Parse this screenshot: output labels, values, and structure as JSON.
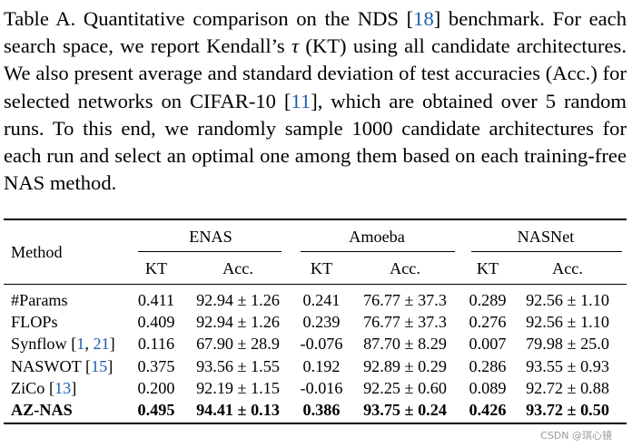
{
  "caption": {
    "parts": [
      {
        "t": "Table A. Quantitative comparison on the NDS ["
      },
      {
        "t": "18",
        "ref": true
      },
      {
        "t": "] benchmark. For each search space, we report Kendall’s "
      },
      {
        "t": "τ",
        "tau": true
      },
      {
        "t": " (KT) using all candidate architectures. We also present average and standard deviation of test accuracies (Acc.) for selected networks on CIFAR-10 ["
      },
      {
        "t": "11",
        "ref": true
      },
      {
        "t": "], which are obtained over 5 random runs. To this end, we randomly sample 1000 candidate architectures for each run and select an optimal one among them based on each training-free NAS method."
      }
    ]
  },
  "table": {
    "method_header": "Method",
    "groups": [
      "ENAS",
      "Amoeba",
      "NASNet"
    ],
    "subheaders": [
      "KT",
      "Acc."
    ],
    "rows": [
      {
        "method": "#Params",
        "values": [
          "0.411",
          "92.94 ± 1.26",
          "0.241",
          "76.77 ± 37.3",
          "0.289",
          "92.56 ± 1.10"
        ]
      },
      {
        "method": "FLOPs",
        "values": [
          "0.409",
          "92.94 ± 1.26",
          "0.239",
          "76.77 ± 37.3",
          "0.276",
          "92.56 ± 1.10"
        ]
      },
      {
        "method": "Synflow",
        "refs": [
          "1",
          "21"
        ],
        "values": [
          "0.116",
          "67.90 ± 28.9",
          "-0.076",
          "87.70 ± 8.29",
          "0.007",
          "79.98 ± 25.0"
        ]
      },
      {
        "method": "NASWOT",
        "refs": [
          "15"
        ],
        "values": [
          "0.375",
          "93.56 ± 1.55",
          "0.192",
          "92.89 ± 0.29",
          "0.286",
          "93.55 ± 0.93"
        ]
      },
      {
        "method": "ZiCo",
        "refs": [
          "13"
        ],
        "values": [
          "0.200",
          "92.19 ± 1.15",
          "-0.016",
          "92.25 ± 0.60",
          "0.089",
          "92.72 ± 0.88"
        ]
      },
      {
        "method": "AZ-NAS",
        "bold": true,
        "values": [
          "0.495",
          "94.41 ± 0.13",
          "0.386",
          "93.75 ± 0.24",
          "0.426",
          "93.72 ± 0.50"
        ]
      }
    ]
  },
  "watermark": "CSDN @琪心镜"
}
